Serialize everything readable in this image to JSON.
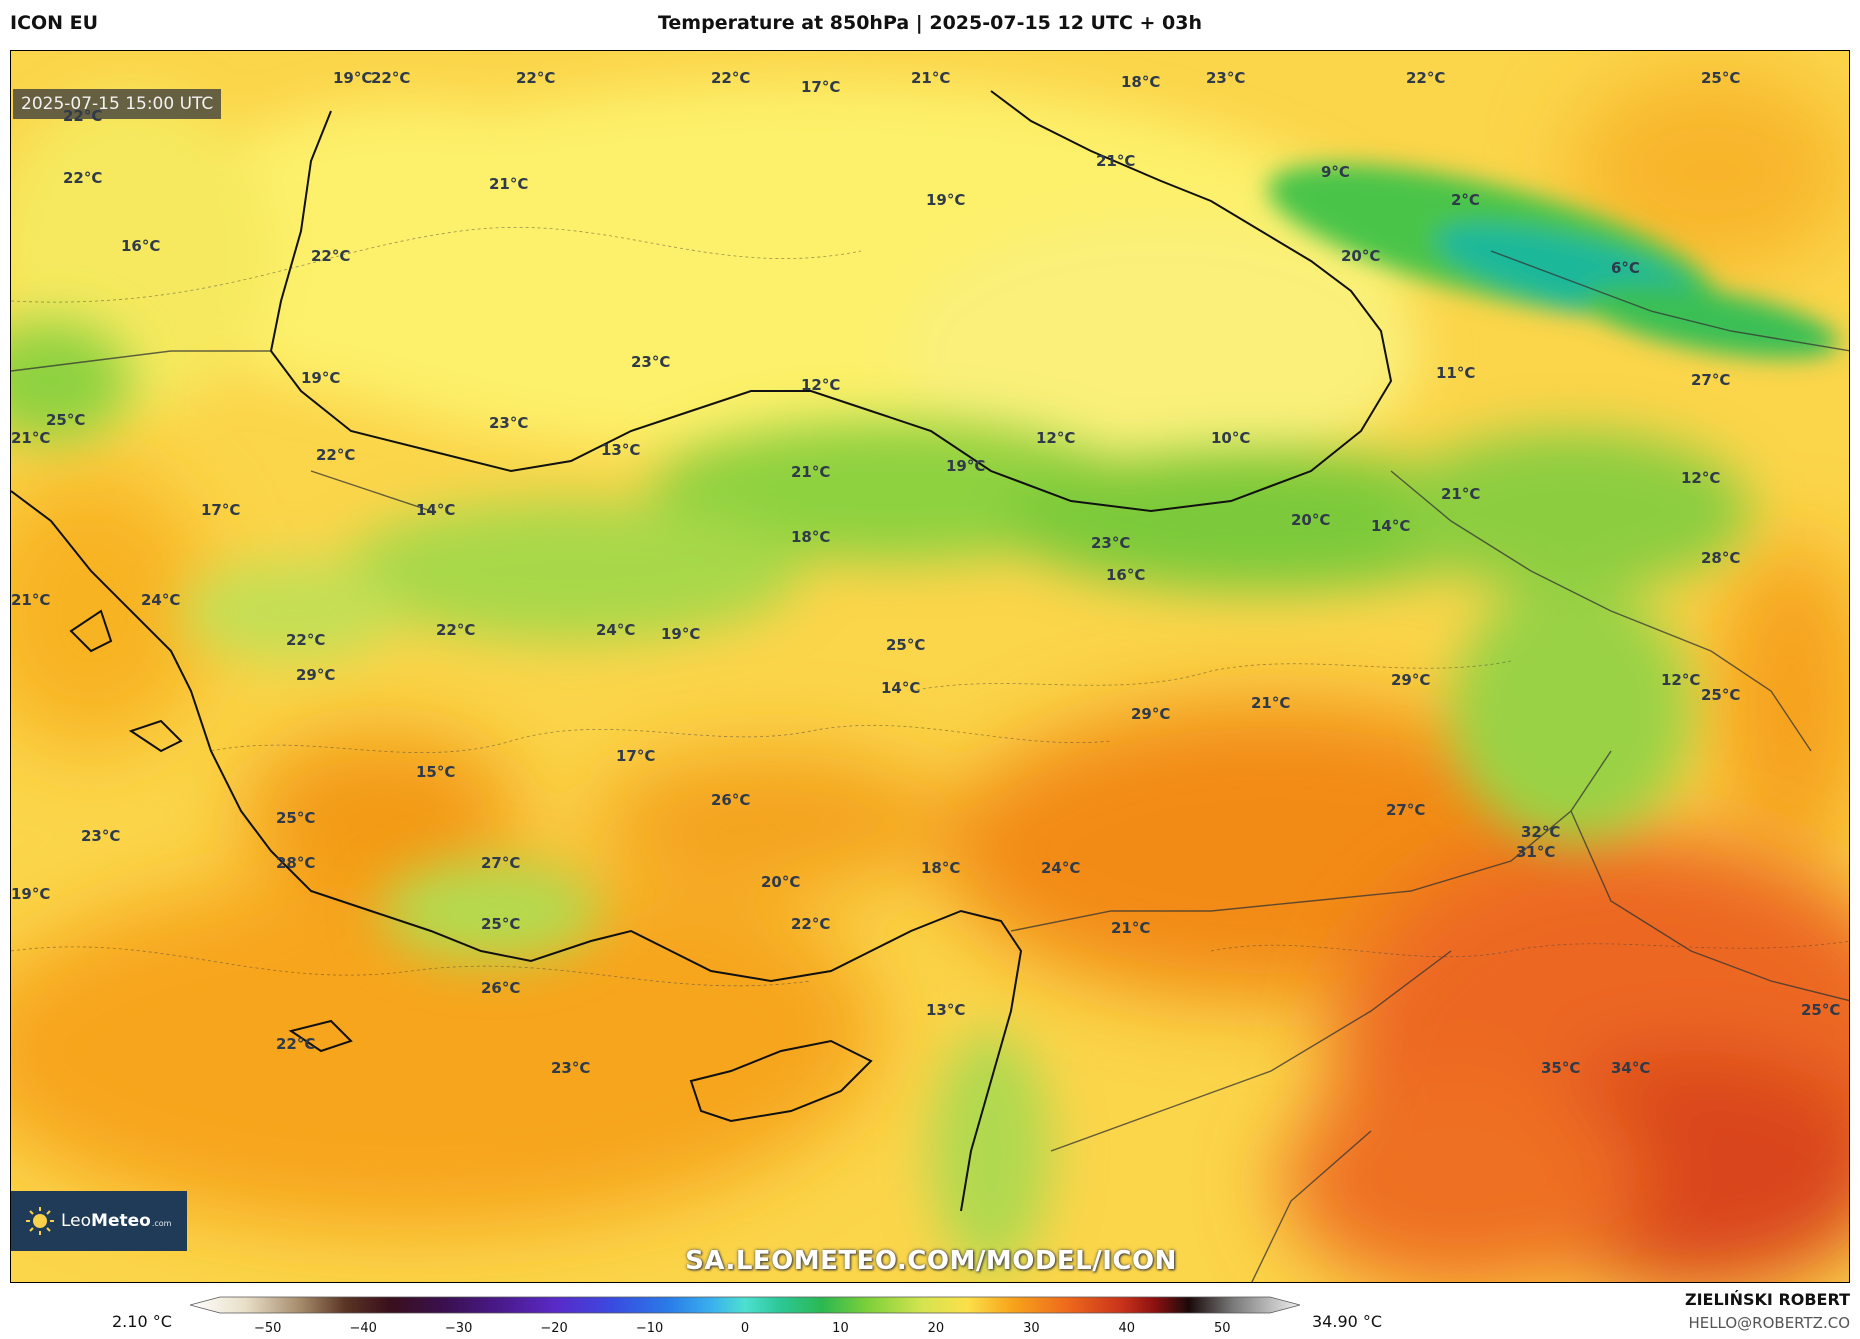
{
  "header": {
    "model": "ICON EU",
    "title": "Temperature at 850hPa | 2025-07-15 12 UTC + 03h"
  },
  "map": {
    "valid_time": "2025-07-15 15:00 UTC",
    "logo": {
      "brand_a": "Leo",
      "brand_b": "Meteo",
      "domain": ".com"
    },
    "watermark": "SA.LEOMETEO.COM/MODEL/ICON",
    "labels": [
      {
        "text": "19°C"
      },
      {
        "text": "22°C"
      },
      {
        "text": "22°C"
      },
      {
        "text": "22°C"
      },
      {
        "text": "17°C"
      },
      {
        "text": "21°C"
      },
      {
        "text": "18°C"
      },
      {
        "text": "23°C"
      },
      {
        "text": "22°C"
      },
      {
        "text": "25°C"
      },
      {
        "text": "22°C"
      },
      {
        "text": "22°C"
      },
      {
        "text": "21°C"
      },
      {
        "text": "21°C"
      },
      {
        "text": "19°C"
      },
      {
        "text": "9°C"
      },
      {
        "text": "2°C"
      },
      {
        "text": "16°C"
      },
      {
        "text": "22°C"
      },
      {
        "text": "20°C"
      },
      {
        "text": "6°C"
      },
      {
        "text": "23°C"
      },
      {
        "text": "12°C"
      },
      {
        "text": "19°C"
      },
      {
        "text": "11°C"
      },
      {
        "text": "27°C"
      },
      {
        "text": "25°C"
      },
      {
        "text": "21°C"
      },
      {
        "text": "23°C"
      },
      {
        "text": "13°C"
      },
      {
        "text": "12°C"
      },
      {
        "text": "10°C"
      },
      {
        "text": "22°C"
      },
      {
        "text": "21°C"
      },
      {
        "text": "19°C"
      },
      {
        "text": "12°C"
      },
      {
        "text": "14°C"
      },
      {
        "text": "21°C"
      },
      {
        "text": "17°C"
      },
      {
        "text": "18°C"
      },
      {
        "text": "20°C"
      },
      {
        "text": "14°C"
      },
      {
        "text": "23°C"
      },
      {
        "text": "28°C"
      },
      {
        "text": "16°C"
      },
      {
        "text": "21°C"
      },
      {
        "text": "24°C"
      },
      {
        "text": "22°C"
      },
      {
        "text": "24°C"
      },
      {
        "text": "19°C"
      },
      {
        "text": "22°C"
      },
      {
        "text": "25°C"
      },
      {
        "text": "29°C"
      },
      {
        "text": "14°C"
      },
      {
        "text": "21°C"
      },
      {
        "text": "29°C"
      },
      {
        "text": "12°C"
      },
      {
        "text": "29°C"
      },
      {
        "text": "25°C"
      },
      {
        "text": "17°C"
      },
      {
        "text": "15°C"
      },
      {
        "text": "26°C"
      },
      {
        "text": "27°C"
      },
      {
        "text": "25°C"
      },
      {
        "text": "23°C"
      },
      {
        "text": "32°C"
      },
      {
        "text": "28°C"
      },
      {
        "text": "27°C"
      },
      {
        "text": "18°C"
      },
      {
        "text": "24°C"
      },
      {
        "text": "31°C"
      },
      {
        "text": "19°C"
      },
      {
        "text": "20°C"
      },
      {
        "text": "25°C"
      },
      {
        "text": "22°C"
      },
      {
        "text": "21°C"
      },
      {
        "text": "26°C"
      },
      {
        "text": "13°C"
      },
      {
        "text": "25°C"
      },
      {
        "text": "22°C"
      },
      {
        "text": "23°C"
      },
      {
        "text": "35°C"
      },
      {
        "text": "34°C"
      }
    ]
  },
  "colorbar": {
    "min_value": "2.10 °C",
    "max_value": "34.90 °C",
    "ticks": [
      "−50",
      "−40",
      "−30",
      "−20",
      "−10",
      "0",
      "10",
      "20",
      "30",
      "40",
      "50"
    ],
    "range": [
      -55,
      55
    ]
  },
  "author": {
    "name": "ZIELIŃSKI ROBERT",
    "email": "HELLO@ROBERTZ.CO"
  },
  "colors": {
    "sea_yellow": "#fdf06a",
    "warm_orange": "#f7a51c",
    "hot_red": "#e8481c",
    "cool_green": "#5cc43a",
    "cold_teal": "#1fb89a"
  }
}
